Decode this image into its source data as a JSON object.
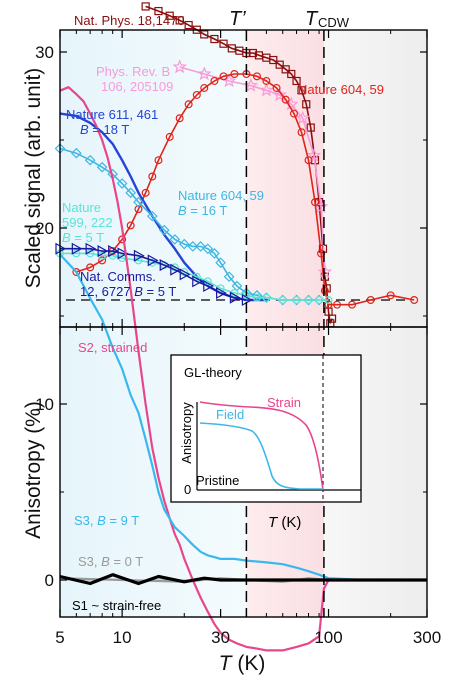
{
  "chart_data": [
    {
      "type": "line",
      "panel": "top",
      "ylabel": "Scaled signal (arb. unit)",
      "x_scale": "log",
      "xlim": [
        5,
        300
      ],
      "colors": {
        "nat_phys": "#8b0d0d",
        "phys_rev_b": "#f79bd8",
        "nature_604_59_red": "#e2231a",
        "nature_611_461": "#2444d6",
        "nature_604_59_cyan": "#3fb6e2",
        "nature_599_222": "#5ae4d4",
        "nat_comms": "#1a1aa0"
      },
      "series": [
        {
          "name": "Nat. Phys. 18,1470",
          "key": "nat_phys",
          "marker": "square",
          "x": [
            13,
            15,
            17,
            19,
            21,
            23,
            25,
            28,
            31,
            34,
            37,
            40,
            43,
            46,
            50,
            54,
            58,
            62,
            66,
            70,
            74,
            78,
            82,
            86,
            90,
            94,
            96,
            98,
            100,
            102,
            104
          ],
          "y": [
            1.26,
            1.24,
            1.22,
            1.2,
            1.18,
            1.16,
            1.14,
            1.12,
            1.1,
            1.08,
            1.07,
            1.06,
            1.06,
            1.05,
            1.04,
            1.03,
            1.01,
            0.99,
            0.97,
            0.94,
            0.9,
            0.84,
            0.74,
            0.6,
            0.42,
            0.22,
            0.1,
            0.05,
            -0.05,
            -0.1,
            -0.08
          ]
        },
        {
          "name": "Phys. Rev. B 106, 205109",
          "key": "phys_rev_b",
          "marker": "star",
          "x": [
            19,
            25,
            33,
            42,
            50,
            58,
            66,
            75,
            85,
            92,
            96
          ],
          "y": [
            1.0,
            0.97,
            0.94,
            0.92,
            0.9,
            0.88,
            0.84,
            0.78,
            0.62,
            0.4,
            0.12
          ]
        },
        {
          "name": "Nature 604, 59",
          "key": "nature_604_59_red",
          "marker": "circle",
          "label": "Nature 604, 59",
          "x": [
            6,
            7,
            8,
            9,
            10,
            11,
            12,
            13,
            14,
            15,
            17,
            19,
            21,
            23,
            25,
            28,
            31,
            35,
            40,
            45,
            50,
            56,
            62,
            68,
            74,
            80,
            86,
            92,
            96,
            100,
            110,
            130,
            160,
            200,
            260
          ],
          "y": [
            0.12,
            0.14,
            0.17,
            0.21,
            0.26,
            0.32,
            0.39,
            0.46,
            0.53,
            0.6,
            0.7,
            0.78,
            0.84,
            0.88,
            0.91,
            0.94,
            0.96,
            0.97,
            0.97,
            0.96,
            0.94,
            0.91,
            0.86,
            0.8,
            0.72,
            0.6,
            0.42,
            0.2,
            0.04,
            -0.02,
            -0.02,
            -0.02,
            0.0,
            0.02,
            0.0
          ]
        },
        {
          "name": "Nature 611, 461",
          "label": "Nature 611, 461",
          "sublabel": "B = 18 T",
          "key": "nature_611_461",
          "marker": "none",
          "x": [
            5,
            6,
            7,
            8,
            9,
            10,
            11,
            12,
            14,
            16,
            18,
            20,
            23,
            26,
            30,
            35,
            40,
            45,
            50
          ],
          "y": [
            0.8,
            0.79,
            0.76,
            0.72,
            0.67,
            0.6,
            0.53,
            0.46,
            0.36,
            0.28,
            0.22,
            0.16,
            0.1,
            0.06,
            0.03,
            0.01,
            0.0,
            0.0,
            0.0
          ]
        },
        {
          "name": "Nature 604, 59",
          "label": "Nature 604, 59",
          "sublabel": "B = 16 T",
          "key": "nature_604_59_cyan",
          "marker": "diamond",
          "x": [
            5,
            6,
            7,
            8,
            9,
            10,
            11,
            12,
            14,
            16,
            18,
            20,
            22,
            24,
            26,
            28,
            30,
            33,
            36,
            40,
            45,
            50,
            60,
            70,
            80,
            90
          ],
          "y": [
            0.65,
            0.63,
            0.6,
            0.57,
            0.54,
            0.5,
            0.46,
            0.42,
            0.36,
            0.3,
            0.26,
            0.24,
            0.23,
            0.23,
            0.22,
            0.2,
            0.16,
            0.1,
            0.06,
            0.03,
            0.02,
            0.01,
            0.0,
            0.0,
            0.0,
            0.0
          ]
        },
        {
          "name": "Nature 599, 222",
          "label": "Nature 599, 222",
          "sublabel": "B = 5 T",
          "key": "nature_599_222",
          "marker": "circle",
          "x": [
            5,
            6,
            7,
            8,
            9,
            10,
            12,
            14,
            16,
            18,
            20,
            23,
            26,
            30,
            35,
            40,
            45,
            50,
            60,
            70,
            80,
            90,
            100
          ],
          "y": [
            0.2,
            0.2,
            0.2,
            0.19,
            0.19,
            0.18,
            0.17,
            0.16,
            0.15,
            0.14,
            0.12,
            0.1,
            0.08,
            0.05,
            0.03,
            0.02,
            0.01,
            0.01,
            0.0,
            0.0,
            0.0,
            0.0,
            0.0
          ]
        },
        {
          "name": "Nat. Comms. 12, 6727",
          "label": "Nat. Comms.",
          "sublabel": "12, 6727 B = 5 T",
          "key": "nat_comms",
          "marker": "triangle",
          "x": [
            5,
            6,
            7,
            8,
            9,
            10,
            12,
            14,
            16,
            18,
            20,
            23,
            26,
            30,
            35,
            40
          ],
          "y": [
            0.22,
            0.22,
            0.22,
            0.21,
            0.21,
            0.2,
            0.19,
            0.17,
            0.15,
            0.13,
            0.11,
            0.08,
            0.06,
            0.03,
            0.01,
            0.0
          ]
        }
      ],
      "vlines": [
        {
          "label": "T’",
          "x": 40
        },
        {
          "label": "T",
          "sub": "CDW",
          "x": 95
        }
      ]
    },
    {
      "type": "line",
      "panel": "bottom",
      "xlabel": "T (K)",
      "ylabel": "Anisotropy (%)",
      "x_scale": "log",
      "xlim": [
        5,
        300
      ],
      "ylim": [
        -5,
        32
      ],
      "x_ticks": [
        "5",
        "10",
        "30",
        "100",
        "300"
      ],
      "y_ticks": [
        "0",
        "10",
        "20",
        "30"
      ],
      "colors": {
        "s2": "#e8468c",
        "s3_9t": "#39b8ec",
        "s3_0t": "#9a9a9a",
        "s1": "#000000"
      },
      "series": [
        {
          "name": "S2, strained",
          "key": "s2",
          "x": [
            5,
            5.5,
            6,
            6.5,
            7,
            7.5,
            8,
            8.5,
            9,
            9.5,
            10,
            11,
            12,
            13,
            14,
            15,
            16,
            17,
            18,
            19,
            20,
            22,
            24,
            26,
            28,
            30,
            33,
            36,
            40,
            45,
            50,
            60,
            70,
            80,
            90,
            95,
            100,
            150,
            200,
            300
          ],
          "y": [
            27.8,
            28.0,
            27.6,
            27.2,
            26.5,
            25.8,
            25.0,
            24.0,
            22.8,
            21.5,
            20.0,
            16.5,
            13.0,
            10.0,
            7.5,
            5.8,
            4.5,
            3.5,
            2.6,
            2.0,
            1.2,
            0.0,
            -1.0,
            -1.8,
            -2.5,
            -3.0,
            -3.4,
            -3.6,
            -3.8,
            -3.9,
            -4.0,
            -4.0,
            -3.8,
            -3.6,
            -3.2,
            -0.5,
            0.0,
            0.0,
            0.0,
            0.0
          ]
        },
        {
          "name": "S3, B = 9 T",
          "key": "s3_9t",
          "x": [
            5,
            6,
            7,
            8,
            9,
            10,
            11,
            12,
            13,
            14,
            15,
            16,
            18,
            20,
            22,
            24,
            26,
            28,
            30,
            35,
            40,
            50,
            60,
            70,
            80,
            90,
            100,
            150,
            200,
            300
          ],
          "y": [
            18.5,
            17.5,
            16.0,
            14.8,
            13.2,
            12.0,
            10.5,
            9.5,
            8.0,
            6.5,
            5.0,
            4.0,
            3.0,
            2.5,
            2.0,
            1.6,
            1.4,
            1.3,
            1.2,
            1.2,
            1.1,
            1.0,
            0.9,
            0.7,
            0.5,
            0.3,
            0.1,
            0.0,
            0.0,
            0.0
          ]
        },
        {
          "name": "S3, B = 0 T",
          "key": "s3_0t",
          "x": [
            5,
            10,
            20,
            30,
            40,
            60,
            80,
            100,
            150,
            200,
            300
          ],
          "y": [
            0.1,
            0.0,
            -0.1,
            0.1,
            0.0,
            -0.1,
            0.1,
            0.0,
            0.0,
            0.0,
            0.0
          ]
        },
        {
          "name": "S1 ~ strain-free",
          "key": "s1",
          "x": [
            5,
            7,
            9,
            12,
            15,
            20,
            25,
            30,
            40,
            60,
            80,
            100,
            150,
            200,
            300
          ],
          "y": [
            0.2,
            -0.2,
            0.3,
            -0.2,
            0.2,
            -0.1,
            0.1,
            0.0,
            0.0,
            0.0,
            0.0,
            0.0,
            0.0,
            0.0,
            0.0
          ]
        }
      ]
    },
    {
      "type": "line",
      "panel": "inset",
      "title": "GL-theory",
      "xlabel": "T (K)",
      "ylabel": "Anisotropy",
      "y_ticks": [
        "0"
      ],
      "series_labels": {
        "strain": "Strain",
        "field": "Field",
        "pristine": "Pristine"
      }
    }
  ]
}
